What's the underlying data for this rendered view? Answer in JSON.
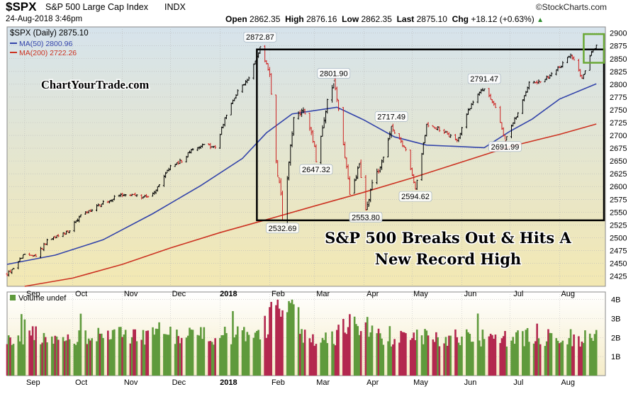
{
  "header": {
    "symbol": "$SPX",
    "name": "S&P 500 Large Cap Index",
    "exchange": "INDX",
    "datetime": "24-Aug-2018 3:46pm",
    "open_label": "Open",
    "open": "2862.35",
    "high_label": "High",
    "high": "2876.16",
    "low_label": "Low",
    "low": "2862.35",
    "last_label": "Last",
    "last": "2875.10",
    "chg_label": "Chg",
    "chg": "+18.12 (+0.63%)",
    "chg_arrow": "▲",
    "brand": "©StockCharts.com"
  },
  "legend": {
    "price": "$SPX (Daily) 2875.10",
    "ma50": "MA(50) 2800.96",
    "ma200": "MA(200) 2722.26"
  },
  "watermark": "ChartYourTrade.com",
  "headline": [
    "S&P 500 Breaks Out & Hits A",
    "New Record High"
  ],
  "volume_label": "Volume undef",
  "colors": {
    "up": "#000000",
    "down": "#cc2222",
    "ma50": "#3344aa",
    "ma200": "#cc3322",
    "vol_up": "#5f9a3c",
    "vol_down": "#b3284f",
    "box": "#000000",
    "breakout_box": "#6aa836",
    "price_bg_top": "#d6e3ec",
    "price_bg_bottom": "#f3e8b2"
  },
  "chart_data": {
    "type": "candlestick",
    "title": "S&P 500 Large Cap Index",
    "x_axis_labels": [
      "Sep",
      "Oct",
      "Nov",
      "Dec",
      "2018",
      "Feb",
      "Mar",
      "Apr",
      "May",
      "Jun",
      "Jul",
      "Aug"
    ],
    "price_axis": {
      "ticks": [
        2425,
        2450,
        2475,
        2500,
        2525,
        2550,
        2575,
        2600,
        2625,
        2650,
        2675,
        2700,
        2725,
        2750,
        2775,
        2800,
        2825,
        2850,
        2875,
        2900
      ],
      "range": [
        2405,
        2912
      ],
      "scale": "linear",
      "position": "right"
    },
    "volume_axis": {
      "ticks": [
        "1B",
        "2B",
        "3B",
        "4B"
      ],
      "tick_values": [
        1,
        2,
        3,
        4
      ],
      "range": [
        0,
        4.4
      ]
    },
    "price_anchors": [
      [
        "2017-08-21",
        2430
      ],
      [
        "2017-08-25",
        2440
      ],
      [
        "2017-09-01",
        2470
      ],
      [
        "2017-09-08",
        2462
      ],
      [
        "2017-09-15",
        2495
      ],
      [
        "2017-09-22",
        2502
      ],
      [
        "2017-09-29",
        2515
      ],
      [
        "2017-10-06",
        2545
      ],
      [
        "2017-10-13",
        2553
      ],
      [
        "2017-10-20",
        2568
      ],
      [
        "2017-10-27",
        2578
      ],
      [
        "2017-11-03",
        2585
      ],
      [
        "2017-11-10",
        2582
      ],
      [
        "2017-11-17",
        2578
      ],
      [
        "2017-11-24",
        2602
      ],
      [
        "2017-12-01",
        2640
      ],
      [
        "2017-12-08",
        2650
      ],
      [
        "2017-12-15",
        2675
      ],
      [
        "2017-12-22",
        2683
      ],
      [
        "2017-12-29",
        2675
      ],
      [
        "2018-01-05",
        2742
      ],
      [
        "2018-01-12",
        2785
      ],
      [
        "2018-01-19",
        2810
      ],
      [
        "2018-01-26",
        2872.87
      ],
      [
        "2018-02-01",
        2820
      ],
      [
        "2018-02-05",
        2648
      ],
      [
        "2018-02-08",
        2580
      ],
      [
        "2018-02-09",
        2532.69
      ],
      [
        "2018-02-16",
        2735
      ],
      [
        "2018-02-23",
        2745
      ],
      [
        "2018-03-01",
        2680
      ],
      [
        "2018-03-02",
        2647.32
      ],
      [
        "2018-03-09",
        2765
      ],
      [
        "2018-03-13",
        2801.9
      ],
      [
        "2018-03-16",
        2752
      ],
      [
        "2018-03-23",
        2588
      ],
      [
        "2018-03-29",
        2640
      ],
      [
        "2018-04-02",
        2553.8
      ],
      [
        "2018-04-06",
        2604
      ],
      [
        "2018-04-13",
        2656
      ],
      [
        "2018-04-18",
        2717.49
      ],
      [
        "2018-04-27",
        2670
      ],
      [
        "2018-05-03",
        2594.62
      ],
      [
        "2018-05-10",
        2720
      ],
      [
        "2018-05-18",
        2712
      ],
      [
        "2018-05-29",
        2690
      ],
      [
        "2018-06-05",
        2748
      ],
      [
        "2018-06-12",
        2785
      ],
      [
        "2018-06-15",
        2791.47
      ],
      [
        "2018-06-22",
        2755
      ],
      [
        "2018-06-28",
        2691.99
      ],
      [
        "2018-07-06",
        2745
      ],
      [
        "2018-07-13",
        2801
      ],
      [
        "2018-07-20",
        2805
      ],
      [
        "2018-07-27",
        2818
      ],
      [
        "2018-08-03",
        2840
      ],
      [
        "2018-08-08",
        2858
      ],
      [
        "2018-08-15",
        2812
      ],
      [
        "2018-08-20",
        2855
      ],
      [
        "2018-08-24",
        2875.1
      ]
    ],
    "ma50": [
      [
        "2017-08-21",
        2448
      ],
      [
        "2017-09-20",
        2466
      ],
      [
        "2017-10-20",
        2496
      ],
      [
        "2017-11-20",
        2547
      ],
      [
        "2017-12-20",
        2602
      ],
      [
        "2018-01-15",
        2655
      ],
      [
        "2018-01-30",
        2705
      ],
      [
        "2018-02-15",
        2742
      ],
      [
        "2018-03-15",
        2755
      ],
      [
        "2018-04-01",
        2730
      ],
      [
        "2018-04-20",
        2697
      ],
      [
        "2018-05-10",
        2681
      ],
      [
        "2018-06-01",
        2678
      ],
      [
        "2018-06-15",
        2676
      ],
      [
        "2018-07-01",
        2708
      ],
      [
        "2018-07-15",
        2732
      ],
      [
        "2018-08-01",
        2771
      ],
      [
        "2018-08-24",
        2800.96
      ]
    ],
    "ma200": [
      [
        "2017-09-01",
        2405
      ],
      [
        "2017-10-01",
        2421
      ],
      [
        "2017-11-01",
        2448
      ],
      [
        "2017-12-01",
        2480
      ],
      [
        "2018-01-01",
        2510
      ],
      [
        "2018-02-01",
        2537
      ],
      [
        "2018-03-01",
        2562
      ],
      [
        "2018-04-01",
        2589
      ],
      [
        "2018-05-01",
        2617
      ],
      [
        "2018-06-01",
        2648
      ],
      [
        "2018-07-01",
        2678
      ],
      [
        "2018-08-01",
        2702
      ],
      [
        "2018-08-24",
        2722.26
      ]
    ],
    "annotations": [
      {
        "text": "2872.87",
        "date": "2018-01-26",
        "value": 2872.87,
        "place": "above"
      },
      {
        "text": "2532.69",
        "date": "2018-02-09",
        "value": 2532.69,
        "place": "below"
      },
      {
        "text": "2647.32",
        "date": "2018-03-02",
        "value": 2647.32,
        "place": "below"
      },
      {
        "text": "2801.90",
        "date": "2018-03-13",
        "value": 2801.9,
        "place": "above"
      },
      {
        "text": "2553.80",
        "date": "2018-04-02",
        "value": 2553.8,
        "place": "below"
      },
      {
        "text": "2717.49",
        "date": "2018-04-18",
        "value": 2717.49,
        "place": "above"
      },
      {
        "text": "2594.62",
        "date": "2018-05-03",
        "value": 2594.62,
        "place": "below"
      },
      {
        "text": "2791.47",
        "date": "2018-06-15",
        "value": 2791.47,
        "place": "above"
      },
      {
        "text": "2691.99",
        "date": "2018-06-28",
        "value": 2691.99,
        "place": "below"
      }
    ],
    "consolidation_box": {
      "from": "2018-01-24",
      "to": "2018-08-24",
      "low": 2534,
      "high": 2868
    },
    "breakout_box": {
      "from": "2018-08-17",
      "to": "2018-08-24",
      "low": 2842,
      "high": 2898
    },
    "volume_level": {
      "before_feb_2018": 2.0,
      "after_feb_2018": 1.9,
      "peak": 4.0
    },
    "grid": true,
    "legend_position": "top-left"
  }
}
